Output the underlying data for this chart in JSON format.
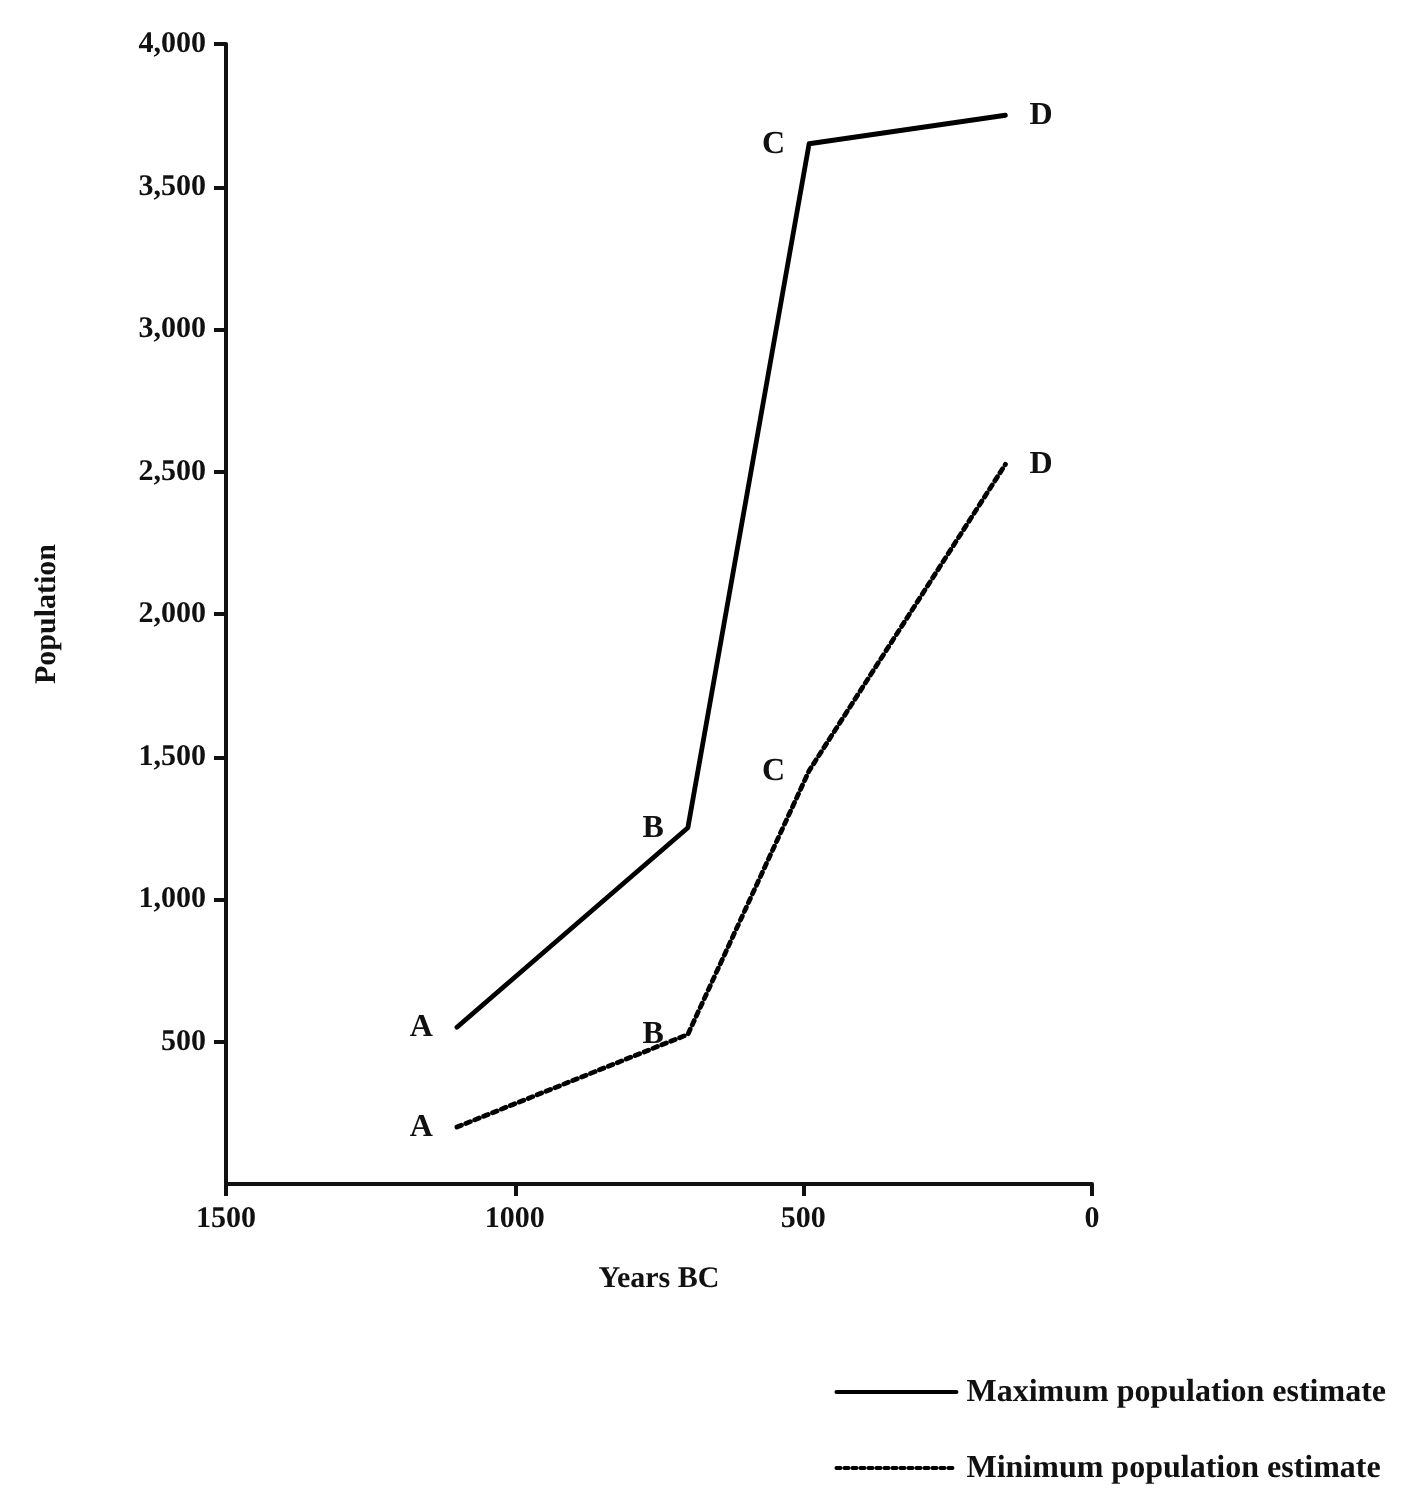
{
  "chart_data": {
    "type": "line",
    "xlabel": "Years BC",
    "ylabel": "Population",
    "xlim": [
      1500,
      0
    ],
    "xticks": [
      1500,
      1000,
      500,
      0
    ],
    "ylim": [
      0,
      4000
    ],
    "yticks": [
      500,
      {
        "value": 1000,
        "label": "1,000"
      },
      {
        "value": 1500,
        "label": "1,500"
      },
      {
        "value": 2000,
        "label": "2,000"
      },
      {
        "value": 2500,
        "label": "2,500"
      },
      {
        "value": 3000,
        "label": "3,000"
      },
      {
        "value": 3500,
        "label": "3,500"
      },
      {
        "value": 4000,
        "label": "4,000"
      }
    ],
    "x": [
      1100,
      700,
      490,
      150
    ],
    "series": [
      {
        "name": "Maximum population estimate",
        "color": "#000000",
        "line_style": "solid",
        "values": [
          550,
          1250,
          3650,
          3750
        ]
      },
      {
        "name": "Minimum population estimate",
        "color": "#000000",
        "line_style": "dotted",
        "values": [
          200,
          525,
          1450,
          2525
        ]
      }
    ],
    "annotations": [
      {
        "text": "A",
        "x": 1100,
        "y": 550
      },
      {
        "text": "B",
        "x": 700,
        "y": 1250
      },
      {
        "text": "C",
        "x": 490,
        "y": 3650
      },
      {
        "text": "D",
        "x": 150,
        "y": 3750
      },
      {
        "text": "A",
        "x": 1100,
        "y": 200
      },
      {
        "text": "B",
        "x": 700,
        "y": 525
      },
      {
        "text": "C",
        "x": 490,
        "y": 1450
      },
      {
        "text": "D",
        "x": 150,
        "y": 2525
      }
    ],
    "marker": "none",
    "grid": false,
    "legend": "bottom right"
  }
}
